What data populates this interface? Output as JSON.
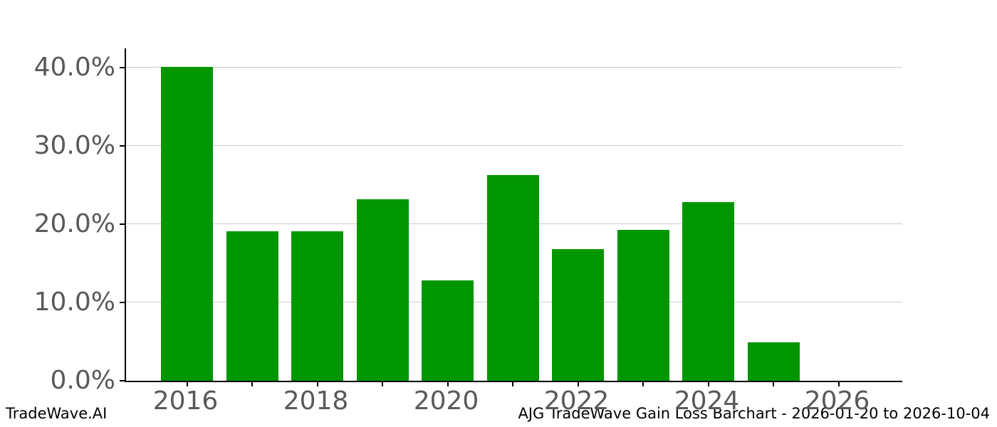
{
  "footer": {
    "left": "TradeWave.AI",
    "right": "AJG TradeWave Gain Loss Barchart - 2026-01-20 to 2026-10-04"
  },
  "chart_data": {
    "type": "bar",
    "title": "",
    "xlabel": "",
    "ylabel": "",
    "categories": [
      "2016",
      "2017",
      "2018",
      "2019",
      "2020",
      "2021",
      "2022",
      "2023",
      "2024",
      "2025",
      "2026"
    ],
    "values": [
      40.1,
      19.1,
      19.1,
      23.2,
      12.8,
      26.3,
      16.8,
      19.3,
      22.8,
      4.9,
      0
    ],
    "unit": "%",
    "ylim": [
      0,
      42.5
    ],
    "yticks": [
      0,
      10,
      20,
      30,
      40
    ],
    "ytick_labels": [
      "0.0%",
      "10.0%",
      "20.0%",
      "30.0%",
      "40.0%"
    ],
    "xtick_labels_shown": [
      "2016",
      "2018",
      "2020",
      "2022",
      "2024",
      "2026"
    ],
    "grid": "horizontal",
    "legend": "none",
    "bar_color": "#009600",
    "gridline_color": "#cccccc",
    "tick_label_color": "#595959",
    "spine_color": "#000000"
  }
}
